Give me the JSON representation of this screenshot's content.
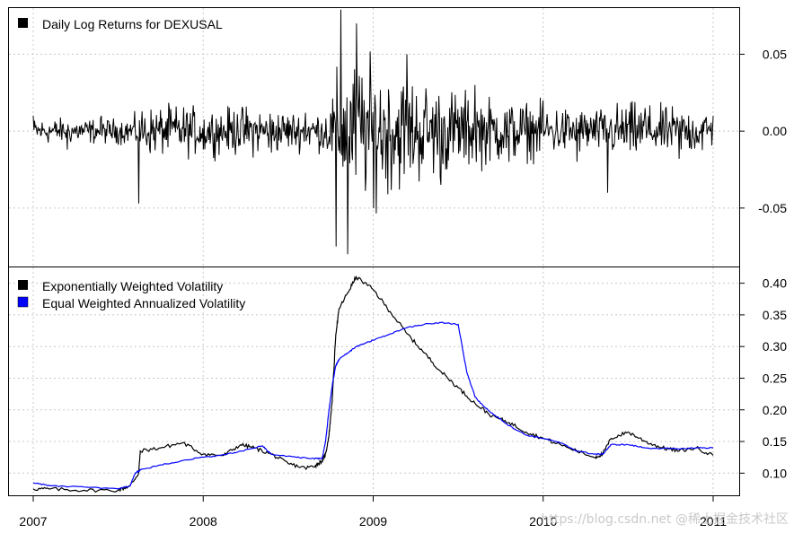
{
  "chart_data": [
    {
      "type": "line",
      "name": "returns-panel",
      "legend": [
        {
          "label": "Daily Log Returns for DEXUSAL",
          "color": "#000000"
        }
      ],
      "ylim": [
        -0.088,
        0.08
      ],
      "yticks": [
        0.05,
        0.0,
        -0.05
      ],
      "ytick_labels": [
        "0.05",
        "0.00",
        "-0.05"
      ],
      "grid": true,
      "series": [
        {
          "name": "Daily Log Returns for DEXUSAL",
          "color": "#000000",
          "sampled_x": [
            2007.0,
            2007.2,
            2007.4,
            2007.62,
            2007.8,
            2008.0,
            2008.2,
            2008.4,
            2008.6,
            2008.78,
            2008.81,
            2008.85,
            2008.9,
            2009.0,
            2009.2,
            2009.4,
            2009.6,
            2009.8,
            2010.0,
            2010.2,
            2010.38,
            2010.6,
            2010.8,
            2011.0
          ],
          "sampled_y": [
            0.01,
            -0.012,
            0.01,
            -0.047,
            0.014,
            -0.012,
            0.011,
            -0.014,
            0.012,
            -0.075,
            0.079,
            -0.08,
            0.07,
            -0.05,
            0.05,
            -0.035,
            0.03,
            -0.02,
            0.02,
            -0.02,
            -0.04,
            0.015,
            -0.018,
            0.01
          ]
        }
      ]
    },
    {
      "type": "line",
      "name": "volatility-panel",
      "legend": [
        {
          "label": "Exponentially Weighted Volatility",
          "color": "#000000"
        },
        {
          "label": "Equal Weighted Annualized Volatility",
          "color": "#0000ff"
        }
      ],
      "xlim": [
        2007.0,
        2011.0
      ],
      "ylim": [
        0.065,
        0.425
      ],
      "yticks": [
        0.4,
        0.35,
        0.3,
        0.25,
        0.2,
        0.15,
        0.1
      ],
      "ytick_labels": [
        "0.40",
        "0.35",
        "0.30",
        "0.25",
        "0.20",
        "0.15",
        "0.10"
      ],
      "xticks": [
        2007,
        2008,
        2009,
        2010,
        2011
      ],
      "xtick_labels": [
        "2007",
        "2008",
        "2009",
        "2010",
        "2011"
      ],
      "grid": true,
      "series": [
        {
          "name": "Exponentially Weighted Volatility",
          "color": "#000000",
          "x": [
            2007.0,
            2007.1,
            2007.3,
            2007.5,
            2007.57,
            2007.62,
            2007.63,
            2007.75,
            2007.88,
            2008.0,
            2008.12,
            2008.22,
            2008.3,
            2008.4,
            2008.5,
            2008.6,
            2008.66,
            2008.7,
            2008.72,
            2008.74,
            2008.76,
            2008.78,
            2008.8,
            2008.85,
            2008.9,
            2009.0,
            2009.1,
            2009.2,
            2009.3,
            2009.4,
            2009.5,
            2009.6,
            2009.7,
            2009.8,
            2009.9,
            2010.0,
            2010.15,
            2010.3,
            2010.35,
            2010.4,
            2010.5,
            2010.6,
            2010.7,
            2010.8,
            2010.9,
            2011.0
          ],
          "y": [
            0.075,
            0.075,
            0.073,
            0.073,
            0.08,
            0.1,
            0.135,
            0.14,
            0.148,
            0.13,
            0.128,
            0.145,
            0.14,
            0.13,
            0.115,
            0.108,
            0.112,
            0.12,
            0.13,
            0.16,
            0.22,
            0.32,
            0.36,
            0.385,
            0.41,
            0.39,
            0.355,
            0.32,
            0.29,
            0.26,
            0.235,
            0.21,
            0.19,
            0.18,
            0.165,
            0.155,
            0.14,
            0.125,
            0.13,
            0.155,
            0.165,
            0.15,
            0.14,
            0.135,
            0.14,
            0.128
          ]
        },
        {
          "name": "Equal Weighted Annualized Volatility",
          "color": "#0000ff",
          "x": [
            2007.0,
            2007.1,
            2007.3,
            2007.5,
            2007.57,
            2007.6,
            2007.63,
            2007.75,
            2007.88,
            2008.0,
            2008.1,
            2008.2,
            2008.35,
            2008.4,
            2008.55,
            2008.65,
            2008.7,
            2008.72,
            2008.74,
            2008.76,
            2008.78,
            2008.8,
            2008.85,
            2008.9,
            2008.95,
            2009.0,
            2009.1,
            2009.2,
            2009.3,
            2009.4,
            2009.5,
            2009.55,
            2009.6,
            2009.65,
            2009.7,
            2009.8,
            2009.9,
            2010.0,
            2010.1,
            2010.2,
            2010.3,
            2010.35,
            2010.4,
            2010.5,
            2010.6,
            2010.8,
            2010.9,
            2011.0
          ],
          "y": [
            0.085,
            0.08,
            0.078,
            0.075,
            0.08,
            0.1,
            0.105,
            0.113,
            0.12,
            0.125,
            0.128,
            0.133,
            0.143,
            0.13,
            0.125,
            0.123,
            0.123,
            0.15,
            0.2,
            0.24,
            0.27,
            0.28,
            0.29,
            0.3,
            0.305,
            0.31,
            0.32,
            0.33,
            0.335,
            0.338,
            0.335,
            0.26,
            0.22,
            0.205,
            0.195,
            0.175,
            0.16,
            0.155,
            0.148,
            0.135,
            0.13,
            0.13,
            0.145,
            0.145,
            0.14,
            0.138,
            0.14,
            0.14
          ]
        }
      ]
    }
  ],
  "watermark": "https://blog.csdn.net @稀土掘金技术社区"
}
